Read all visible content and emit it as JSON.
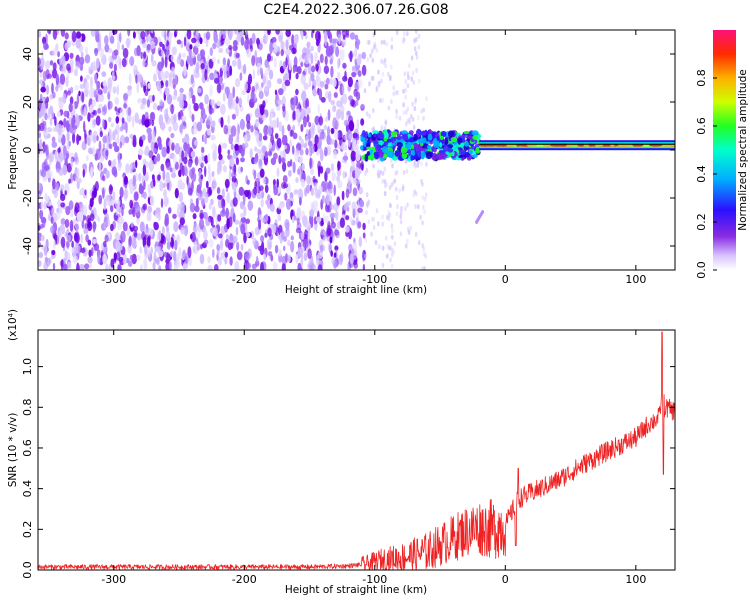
{
  "chart_data": [
    {
      "type": "heatmap",
      "title": "C2E4.2022.306.07.26.G08",
      "xlabel": "Height of straight line (km)",
      "ylabel": "Frequency (Hz)",
      "xlim": [
        -358,
        130
      ],
      "ylim": [
        -50,
        50
      ],
      "xticks": [
        -300,
        -200,
        -100,
        0,
        100
      ],
      "yticks": [
        -40,
        -20,
        0,
        20,
        40
      ],
      "colorbar": {
        "label": "Normalized spectral amplitude",
        "range": [
          0,
          1
        ],
        "ticks": [
          "0.0",
          "0.2",
          "0.4",
          "0.6",
          "0.8"
        ],
        "colormap": "rainbow"
      },
      "features": {
        "noise_region_x": [
          -358,
          -108
        ],
        "noise_level": 0.2,
        "signal_band_frequency_hz": 2,
        "signal_band_x": [
          -110,
          130
        ],
        "signal_peak_amplitude": 0.9,
        "tail_point": {
          "x": -22,
          "y": -30
        }
      }
    },
    {
      "type": "line",
      "xlabel": "Height of straight line (km)",
      "ylabel": "SNR (10 * v/v)",
      "y_multiplier": "(x10⁴)",
      "xlim": [
        -358,
        130
      ],
      "ylim": [
        0,
        1.18
      ],
      "xticks": [
        -300,
        -200,
        -100,
        0,
        100
      ],
      "yticks": [
        "0.0",
        "0.2",
        "0.4",
        "0.6",
        "0.8",
        "1.0"
      ],
      "line_color": "#ee2222",
      "series": [
        {
          "x": [
            -358,
            -300,
            -250,
            -200,
            -150,
            -120,
            -105,
            -95,
            -80,
            -60,
            -45,
            -30,
            -20,
            -10,
            0,
            10,
            20,
            40,
            60,
            80,
            100,
            110,
            118,
            120,
            122,
            130
          ],
          "values": [
            0.015,
            0.015,
            0.015,
            0.015,
            0.015,
            0.02,
            0.03,
            0.05,
            0.06,
            0.09,
            0.14,
            0.19,
            0.21,
            0.2,
            0.22,
            0.35,
            0.38,
            0.44,
            0.52,
            0.59,
            0.65,
            0.72,
            0.75,
            0.88,
            0.8,
            0.78
          ]
        }
      ],
      "spikes": [
        {
          "x": 10,
          "value": 0.5
        },
        {
          "x": 8,
          "value": 0.12
        },
        {
          "x": 120,
          "value": 1.17
        },
        {
          "x": 121,
          "value": 0.47
        }
      ]
    }
  ]
}
